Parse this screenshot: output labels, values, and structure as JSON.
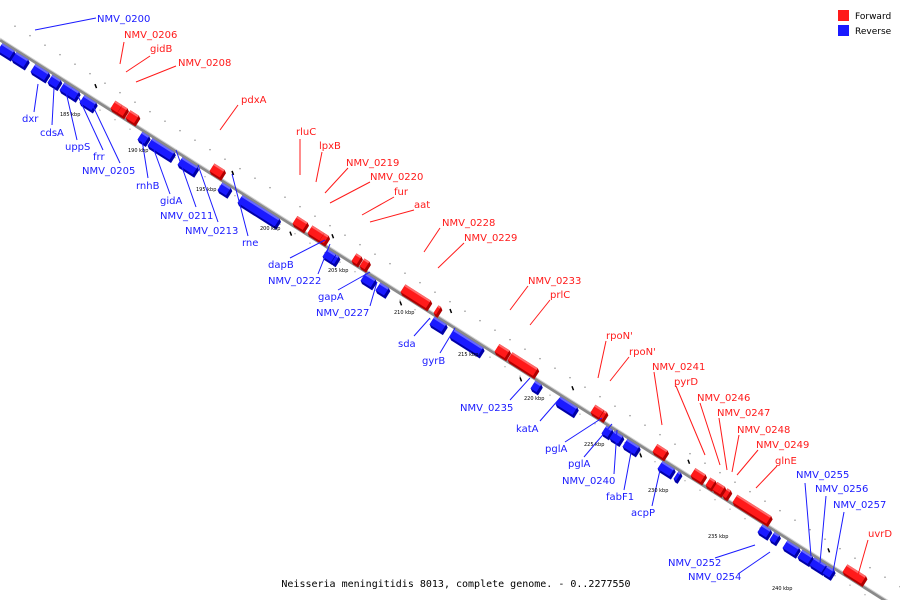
{
  "caption": "Neisseria meningitidis 8013, complete genome. - 0..2277550",
  "legend": [
    {
      "label": "Forward",
      "color": "#ff1a1a"
    },
    {
      "label": "Reverse",
      "color": "#1a1aff"
    }
  ],
  "colors": {
    "forward": "#ff1a1a",
    "reverse": "#1a1aff",
    "forward_dark": "#b00000",
    "reverse_dark": "#0000a8",
    "axis": "#7a7a7a"
  },
  "ticks": [
    "185 kbp",
    "190 kbp",
    "195 kbp",
    "200 kbp",
    "205 kbp",
    "210 kbp",
    "215 kbp",
    "220 kbp",
    "225 kbp",
    "230 kbp",
    "235 kbp",
    "240 kbp"
  ],
  "genes_forward": [
    {
      "name": "NMV_0206"
    },
    {
      "name": "gidB"
    },
    {
      "name": "NMV_0208"
    },
    {
      "name": "pdxA"
    },
    {
      "name": "rluC"
    },
    {
      "name": "lpxB"
    },
    {
      "name": "NMV_0219"
    },
    {
      "name": "NMV_0220"
    },
    {
      "name": "fur"
    },
    {
      "name": "aat"
    },
    {
      "name": "NMV_0228"
    },
    {
      "name": "NMV_0229"
    },
    {
      "name": "NMV_0233"
    },
    {
      "name": "prlC"
    },
    {
      "name": "rpoN'"
    },
    {
      "name": "rpoN'"
    },
    {
      "name": "NMV_0241"
    },
    {
      "name": "pyrD"
    },
    {
      "name": "NMV_0246"
    },
    {
      "name": "NMV_0247"
    },
    {
      "name": "NMV_0248"
    },
    {
      "name": "NMV_0249"
    },
    {
      "name": "glnE"
    },
    {
      "name": "uvrD"
    }
  ],
  "genes_reverse": [
    {
      "name": "NMV_0200"
    },
    {
      "name": "dxr"
    },
    {
      "name": "cdsA"
    },
    {
      "name": "uppS"
    },
    {
      "name": "frr"
    },
    {
      "name": "NMV_0205"
    },
    {
      "name": "rnhB"
    },
    {
      "name": "gidA"
    },
    {
      "name": "NMV_0211"
    },
    {
      "name": "NMV_0213"
    },
    {
      "name": "rne"
    },
    {
      "name": "dapB"
    },
    {
      "name": "NMV_0222"
    },
    {
      "name": "gapA"
    },
    {
      "name": "NMV_0227"
    },
    {
      "name": "sda"
    },
    {
      "name": "gyrB"
    },
    {
      "name": "NMV_0235"
    },
    {
      "name": "katA"
    },
    {
      "name": "pglA"
    },
    {
      "name": "pglA"
    },
    {
      "name": "NMV_0240"
    },
    {
      "name": "fabF1"
    },
    {
      "name": "acpP"
    },
    {
      "name": "NMV_0255"
    },
    {
      "name": "NMV_0256"
    },
    {
      "name": "NMV_0257"
    },
    {
      "name": "NMV_0252"
    },
    {
      "name": "NMV_0254"
    }
  ]
}
